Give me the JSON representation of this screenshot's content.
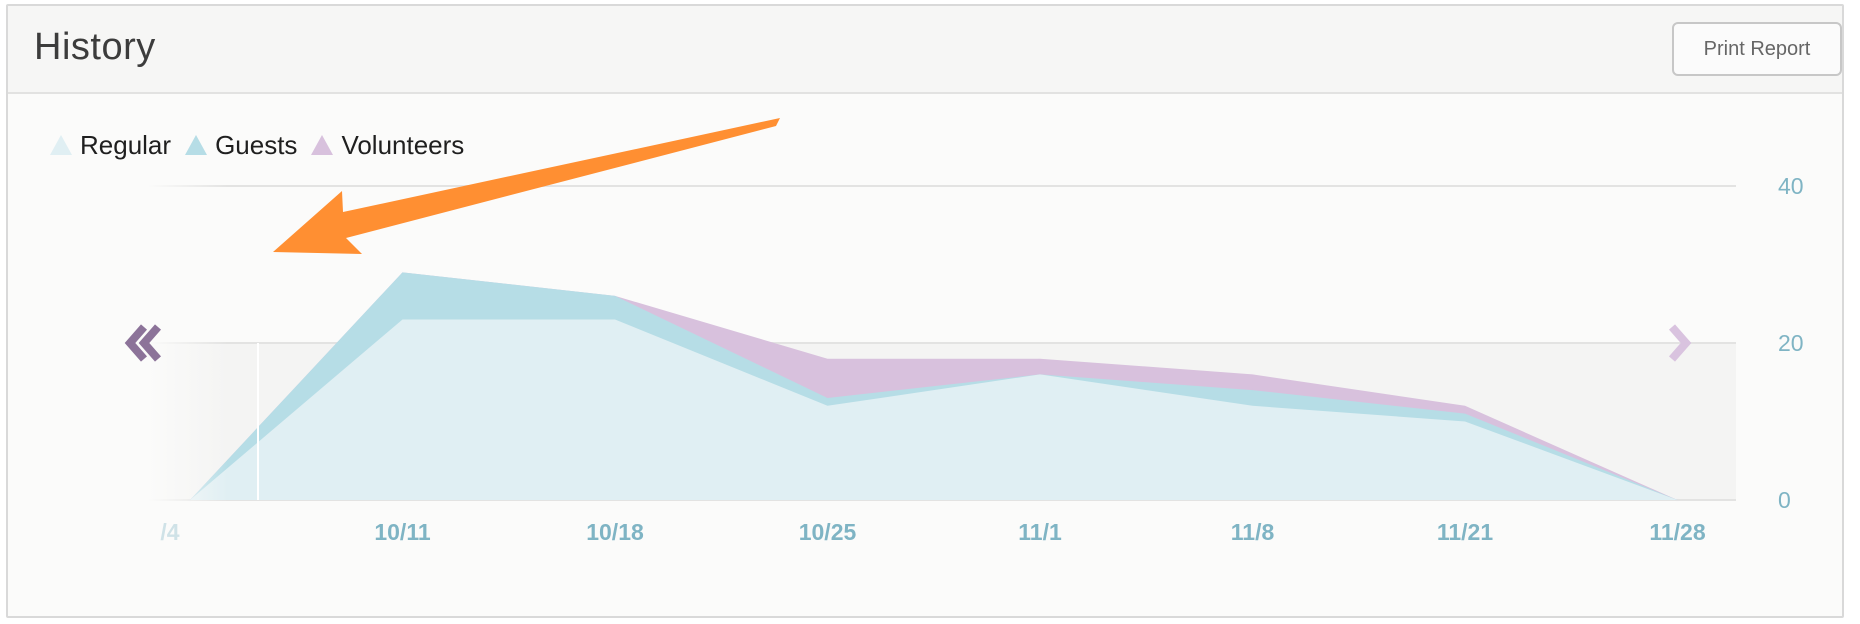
{
  "panel": {
    "title": "History",
    "print_button_label": "Print Report"
  },
  "colors": {
    "regular": "#e0eff3",
    "guests": "#b6dde6",
    "volunteers": "#d8c1dd",
    "axis_text": "#7fb4c4",
    "arrow_left": "#8c7399",
    "arrow_right": "#d9c3df",
    "annotation_arrow": "#ff8f32"
  },
  "chart_data": {
    "type": "area",
    "stacked": true,
    "x": [
      "/4",
      "10/11",
      "10/18",
      "10/25",
      "11/1",
      "11/8",
      "11/21",
      "11/28"
    ],
    "series": [
      {
        "name": "Regular",
        "values": [
          0,
          23,
          23,
          12,
          16,
          12,
          10,
          0
        ]
      },
      {
        "name": "Guests",
        "values": [
          0,
          6,
          3,
          1,
          0,
          2,
          1,
          0
        ]
      },
      {
        "name": "Volunteers",
        "values": [
          0,
          0,
          0,
          5,
          2,
          2,
          1,
          0
        ]
      }
    ],
    "y_ticks": [
      "0",
      "20",
      "40"
    ],
    "ylim": [
      0,
      40
    ],
    "y_axis_side": "right",
    "grid": true,
    "legend_placement": "top-left",
    "annotation": "arrow"
  }
}
